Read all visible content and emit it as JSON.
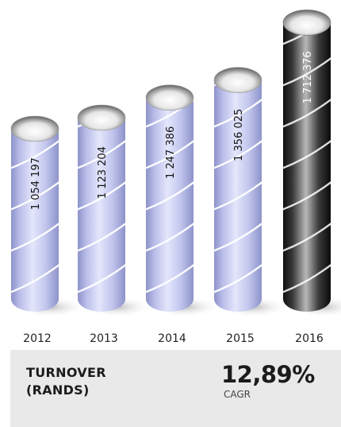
{
  "chart_data": {
    "type": "bar",
    "style": "cylinders",
    "categories": [
      "2012",
      "2013",
      "2014",
      "2015",
      "2016"
    ],
    "values": [
      1054197,
      1123204,
      1247386,
      1356025,
      1712376
    ],
    "data_labels": [
      "1 054 197",
      "1 123 204",
      "1 247 386",
      "1 356 025",
      "1 712 376"
    ],
    "highlight_index": 4,
    "title": "",
    "xlabel": "",
    "ylabel": "",
    "grid": false,
    "colors": {
      "bar": "#c7cbee",
      "bar_highlight": "#2a2a2a",
      "label": "#111111",
      "tick": "#222222"
    }
  },
  "summary": {
    "metric_title": "TURNOVER (RANDS)",
    "metric_value": "12,89%",
    "metric_unit": "CAGR"
  }
}
